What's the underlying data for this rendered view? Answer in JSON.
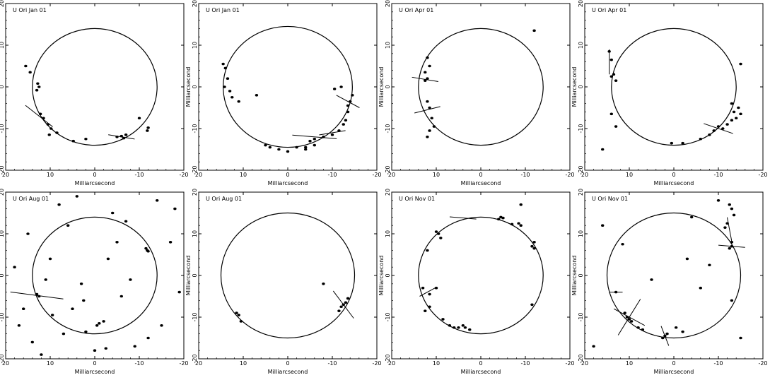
{
  "chart_data": [
    {
      "type": "scatter",
      "title": "U Ori Jan 01",
      "xlabel": "Milliarcsecond",
      "ylabel": "Milliarcsecond",
      "xlim": [
        20,
        -20
      ],
      "ylim": [
        -20,
        20
      ],
      "xticks": [
        20,
        10,
        0,
        -10,
        -20
      ],
      "yticks": [
        -20,
        -10,
        0,
        10,
        20
      ],
      "grid": false,
      "ring_radius": 14,
      "series": [
        {
          "x": [
            15.5,
            14.5,
            12.8,
            12.5,
            13,
            12.2,
            11.5,
            10.5,
            9.8,
            8.5,
            10.2,
            4.8,
            2.0,
            -5.0,
            -6.0,
            -6.5,
            -7.0,
            -10.0,
            -12.0,
            -11.8
          ],
          "y": [
            5.0,
            3.5,
            0.8,
            0.0,
            -0.8,
            -6.5,
            -7.5,
            -9.0,
            -10.0,
            -11.0,
            -11.5,
            -13.0,
            -12.5,
            -12.0,
            -11.8,
            -12.3,
            -11.5,
            -7.5,
            -9.8,
            -10.5
          ]
        }
      ],
      "vectors": [
        {
          "x": 12.5,
          "y": -7.0,
          "angle": 40,
          "length": 8
        },
        {
          "x": -6.0,
          "y": -12.0,
          "angle": 10,
          "length": 6
        }
      ]
    },
    {
      "type": "scatter",
      "title": "U Ori Jan 01",
      "xlabel": "Milliarcsecond",
      "ylabel": "Milliarcsecond",
      "xlim": [
        20,
        -20
      ],
      "ylim": [
        -20,
        20
      ],
      "xticks": [
        20,
        10,
        0,
        -10,
        -20
      ],
      "yticks": [
        -20,
        -10,
        0,
        10,
        20
      ],
      "grid": false,
      "ring_radius": 14.5,
      "series": [
        {
          "x": [
            14.5,
            14.0,
            13.5,
            14.2,
            13.0,
            12.5,
            11.0,
            7.0,
            -4.0,
            -5.0,
            -6.0,
            -8.0,
            -10.0,
            -11.5,
            -12.5,
            -13.5,
            -13.5,
            -14.0,
            -14.5,
            -13.0,
            -6.0,
            -4.0,
            -2.0,
            0,
            2.0,
            4.0,
            5.0,
            -12.0,
            -10.5
          ],
          "y": [
            5.5,
            4.5,
            2.0,
            0.0,
            -1.0,
            -2.5,
            -3.5,
            -2.0,
            -14.5,
            -13.0,
            -12.5,
            -12.0,
            -11.5,
            -10.5,
            -9.0,
            -6.0,
            -4.5,
            -3.5,
            -2.0,
            -8.0,
            -14.0,
            -15.0,
            -14.5,
            -15.5,
            -15.0,
            -14.5,
            -14.0,
            0.0,
            -0.5
          ]
        }
      ],
      "vectors": [
        {
          "x": -13.5,
          "y": -3.5,
          "angle": 30,
          "length": 6
        },
        {
          "x": -6.0,
          "y": -12.0,
          "angle": 5,
          "length": 10
        },
        {
          "x": -10.0,
          "y": -11.0,
          "angle": -10,
          "length": 6
        }
      ]
    },
    {
      "type": "scatter",
      "title": "U Ori Apr 01",
      "xlabel": "Milliarcsecond",
      "ylabel": "Milliarcsecond",
      "xlim": [
        20,
        -20
      ],
      "ylim": [
        -20,
        20
      ],
      "xticks": [
        20,
        10,
        0,
        -10,
        -20
      ],
      "yticks": [
        -20,
        -10,
        0,
        10,
        20
      ],
      "grid": false,
      "ring_radius": 14,
      "series": [
        {
          "x": [
            12.0,
            11.5,
            12.5,
            12.0,
            12.5,
            12.0,
            11.5,
            11.0,
            10.5,
            11.5,
            12.0,
            -12.0
          ],
          "y": [
            7.0,
            5.0,
            3.5,
            2.0,
            1.5,
            -3.5,
            -5.0,
            -7.5,
            -9.5,
            -10.5,
            -12.0,
            13.5
          ]
        }
      ],
      "vectors": [
        {
          "x": 12.5,
          "y": 1.8,
          "angle": 10,
          "length": 6
        },
        {
          "x": 12.0,
          "y": -5.5,
          "angle": -15,
          "length": 6
        }
      ]
    },
    {
      "type": "scatter",
      "title": "U Ori Apr 01",
      "xlabel": "Milliarcsecond",
      "ylabel": "Milliarcsecond",
      "xlim": [
        20,
        -20
      ],
      "ylim": [
        -20,
        20
      ],
      "xticks": [
        20,
        10,
        0,
        -10,
        -20
      ],
      "yticks": [
        -20,
        -10,
        0,
        10,
        20
      ],
      "grid": false,
      "ring_radius": 14,
      "series": [
        {
          "x": [
            14.5,
            14.0,
            13.5,
            14.0,
            13.0,
            14.0,
            13.0,
            16.0,
            -8.0,
            -9.0,
            -10.0,
            -11.0,
            -12.0,
            -13.0,
            -14.0,
            -13.5,
            -14.5,
            -13.0,
            -15.0,
            -6.0,
            -2.0,
            0.5,
            -15.0
          ],
          "y": [
            8.5,
            6.5,
            3.0,
            2.5,
            1.5,
            -6.5,
            -9.5,
            -15.0,
            -11.5,
            -10.5,
            -9.5,
            -10.0,
            -9.0,
            -8.0,
            -7.5,
            -6.0,
            -5.0,
            -4.0,
            -6.5,
            -12.5,
            -13.5,
            -13.5,
            5.5
          ]
        }
      ],
      "vectors": [
        {
          "x": 14.5,
          "y": 6.0,
          "angle": 90,
          "length": 6
        },
        {
          "x": -10.0,
          "y": -10.0,
          "angle": 20,
          "length": 7
        }
      ]
    },
    {
      "type": "scatter",
      "title": "U Ori Aug 01",
      "xlabel": "Milliarcsecond",
      "ylabel": "Milliarcsecond",
      "xlim": [
        20,
        -20
      ],
      "ylim": [
        -20,
        20
      ],
      "xticks": [
        20,
        10,
        0,
        -10,
        -20
      ],
      "yticks": [
        -20,
        -10,
        0,
        10,
        20
      ],
      "grid": false,
      "ring_radius": 14,
      "series": [
        {
          "x": [
            -7.0,
            -11.5,
            -12.0,
            -11.8,
            13.0,
            12.5,
            9.5,
            2.0,
            -0.5,
            -1.0,
            -2.0,
            18.0,
            16.0,
            14.0,
            12.0,
            8.0,
            6.0,
            3.0,
            -3.0,
            -6.0,
            -9.0,
            -15.0,
            -18.0,
            -19.0,
            15.0,
            5.0,
            -5.0,
            -14.0,
            10.0,
            0.0,
            7.0,
            -8.0,
            17.0,
            -17.0,
            4.0,
            -4.0,
            11.0,
            -12.0,
            2.5,
            -2.5
          ],
          "y": [
            13.0,
            6.5,
            5.8,
            6.0,
            -4.5,
            -5.0,
            -9.5,
            -13.5,
            -12.0,
            -11.5,
            -11.0,
            2.0,
            -8.0,
            -16.0,
            -19.0,
            17.0,
            12.0,
            -2.0,
            4.0,
            -5.0,
            -17.0,
            -12.0,
            16.0,
            -4.0,
            10.0,
            -8.0,
            8.0,
            18.0,
            4.0,
            -18.0,
            -14.0,
            -1.0,
            -12.0,
            8.0,
            19.0,
            15.0,
            -1.0,
            -15.0,
            -6.0,
            -17.5
          ]
        }
      ],
      "vectors": [
        {
          "x": 13.0,
          "y": -4.8,
          "angle": 8,
          "length": 12
        }
      ]
    },
    {
      "type": "scatter",
      "title": "U Ori Aug 01",
      "xlabel": "Milliarcsecond",
      "ylabel": "Milliarcsecond",
      "xlim": [
        20,
        -20
      ],
      "ylim": [
        -20,
        20
      ],
      "xticks": [
        20,
        10,
        0,
        -10,
        -20
      ],
      "yticks": [
        -20,
        -10,
        0,
        10,
        20
      ],
      "grid": false,
      "ring_radius": 15,
      "series": [
        {
          "x": [
            11.5,
            11.0,
            10.5,
            -12.0,
            -12.5,
            -13.0,
            -11.5,
            -13.5,
            -8.0
          ],
          "y": [
            -9.0,
            -9.5,
            -11.0,
            -7.5,
            -7.0,
            -6.5,
            -8.5,
            -5.5,
            -2.0
          ]
        }
      ],
      "vectors": [
        {
          "x": -12.5,
          "y": -7.0,
          "angle": 55,
          "length": 8
        }
      ]
    },
    {
      "type": "scatter",
      "title": "U Ori Nov 01",
      "xlabel": "Milliarcsecond",
      "ylabel": "Milliarcsecond",
      "xlim": [
        20,
        -20
      ],
      "ylim": [
        -20,
        20
      ],
      "xticks": [
        20,
        10,
        0,
        -10,
        -20
      ],
      "yticks": [
        -20,
        -10,
        0,
        10,
        20
      ],
      "grid": false,
      "ring_radius": 14,
      "series": [
        {
          "x": [
            10.0,
            9.5,
            9.0,
            -4.0,
            -4.5,
            -5.0,
            -9.0,
            -12.0,
            -11.5,
            -12.0,
            12.0,
            11.5,
            12.5,
            8.5,
            7.0,
            6.0,
            5.0,
            4.0,
            3.5,
            2.5,
            11.5,
            10.0,
            -8.5,
            -9.0,
            -7.0,
            -11.5,
            13.0
          ],
          "y": [
            10.5,
            10.0,
            9.0,
            13.5,
            14.0,
            13.8,
            17.0,
            8.0,
            7.0,
            6.5,
            6.0,
            -7.5,
            -8.5,
            -10.5,
            -12.0,
            -12.5,
            -12.5,
            -12.0,
            -12.5,
            -13.0,
            -4.5,
            -3.0,
            12.5,
            12.0,
            12.3,
            -7.0,
            -3.0
          ]
        }
      ],
      "vectors": [
        {
          "x": 4.0,
          "y": 13.8,
          "angle": 5,
          "length": 6
        },
        {
          "x": 12.0,
          "y": -4.0,
          "angle": -30,
          "length": 4
        }
      ]
    },
    {
      "type": "scatter",
      "title": "U Ori Nov 01",
      "xlabel": "Milliarcsecond",
      "ylabel": "Milliarcsecond",
      "xlim": [
        20,
        -20
      ],
      "ylim": [
        -20,
        20
      ],
      "xticks": [
        20,
        10,
        0,
        -10,
        -20
      ],
      "yticks": [
        -20,
        -10,
        0,
        10,
        20
      ],
      "grid": false,
      "ring_radius": 15,
      "series": [
        {
          "x": [
            -12.5,
            -13.0,
            -13.5,
            -12.0,
            -11.5,
            -13.0,
            -12.5,
            -13.0,
            13.0,
            11.0,
            10.5,
            10.0,
            9.5,
            8.0,
            7.0,
            -2.0,
            2.0,
            2.5,
            1.5,
            -0.5,
            -13.0,
            -4.0,
            11.5,
            -3.0,
            -6.0,
            5.0,
            -8.0,
            -15.0,
            -10.0,
            18.0,
            16.0
          ],
          "y": [
            17.0,
            16.0,
            14.5,
            12.5,
            11.5,
            7.0,
            6.5,
            8.0,
            -4.0,
            -9.0,
            -10.0,
            -10.5,
            -11.0,
            -12.5,
            -13.0,
            -13.5,
            -14.5,
            -15.0,
            -14.0,
            -12.5,
            -6.0,
            14.0,
            7.5,
            4.0,
            -3.0,
            -1.0,
            2.5,
            -15.0,
            18.0,
            -17.0,
            12.0
          ]
        }
      ],
      "vectors": [
        {
          "x": 10.0,
          "y": -10.0,
          "angle": -60,
          "length": 10
        },
        {
          "x": 10.0,
          "y": -10.0,
          "angle": 30,
          "length": 8
        },
        {
          "x": -13.0,
          "y": 7.0,
          "angle": 5,
          "length": 6
        },
        {
          "x": -12.5,
          "y": 11.0,
          "angle": 80,
          "length": 6
        },
        {
          "x": 2.0,
          "y": -14.5,
          "angle": 70,
          "length": 5
        },
        {
          "x": 13.0,
          "y": -4.0,
          "angle": 0,
          "length": 3
        }
      ]
    }
  ]
}
